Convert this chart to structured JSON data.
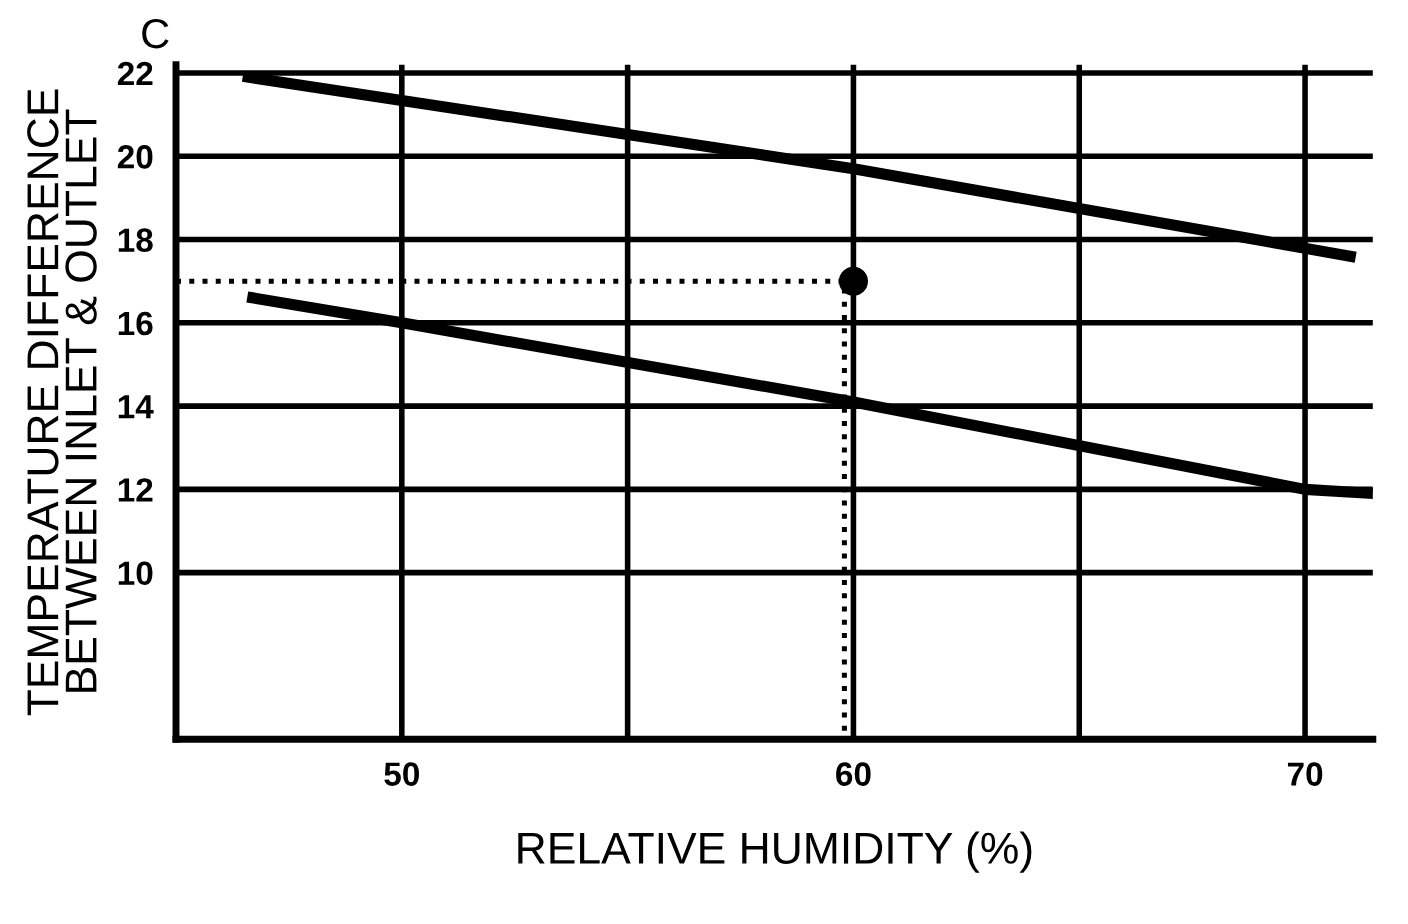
{
  "chart_data": {
    "type": "line",
    "title": "C",
    "xlabel": "RELATIVE HUMIDITY (%)",
    "ylabel": "TEMPERATURE DIFFERENCE\nBETWEEN INLET & OUTLET",
    "series": [
      {
        "color": "#000000",
        "line_style": "solid",
        "x": [
          46.6,
          60,
          71
        ],
        "values": [
          21.9,
          19.7,
          17.6
        ]
      },
      {
        "color": "#000000",
        "line_style": "solid",
        "x": [
          46.7,
          50,
          60,
          70,
          71.5
        ],
        "values": [
          16.6,
          16.0,
          14.1,
          12.0,
          11.9
        ]
      },
      {
        "color": "#000000",
        "line_style": "dotted",
        "x": [
          45,
          59.8,
          59.8
        ],
        "values": [
          17,
          17,
          6
        ]
      },
      {
        "type": "scatter",
        "color": "#000000",
        "marker": "circle",
        "x": [
          60
        ],
        "values": [
          17
        ]
      }
    ],
    "xlim": [
      45,
      71.5
    ],
    "xticks": [
      50,
      {
        "value": 55,
        "label": null
      },
      60,
      {
        "value": 65,
        "label": null
      },
      70
    ],
    "ylim": [
      6,
      22.2
    ],
    "yticks": [
      10,
      12,
      14,
      16,
      18,
      20,
      22
    ],
    "grid": true,
    "legend": false
  }
}
